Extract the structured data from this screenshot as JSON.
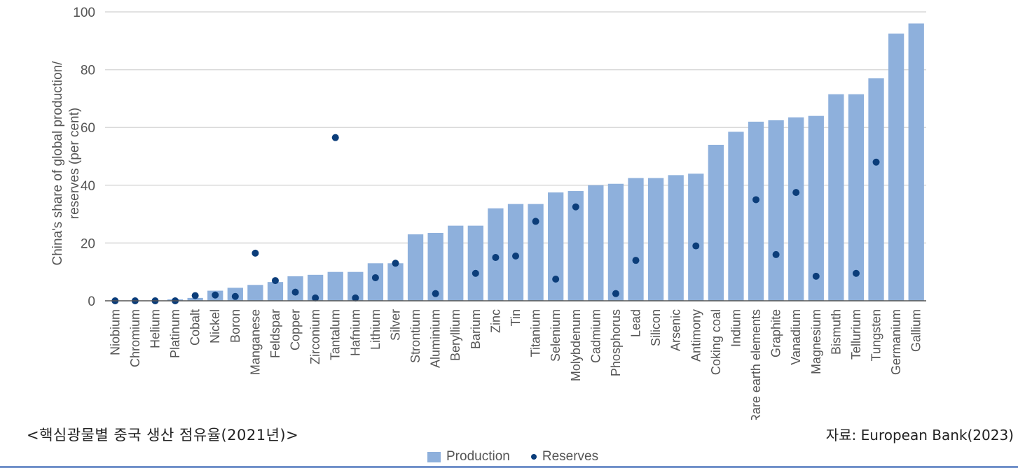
{
  "caption": "<핵심광물별 중국 생산 점유율(2021년)>",
  "source": "자료: European Bank(2023)",
  "colors": {
    "production": "#8eb0dc",
    "reserves": "#0b3d7a",
    "grid": "#d9d9d9",
    "axis": "#555555"
  },
  "chart_data": {
    "type": "bar",
    "ylabel": "China's share of global production/ reserves (per cent)",
    "ylabel_lines": [
      "China's share of global production/",
      "reserves (per cent)"
    ],
    "ylim": [
      0,
      100
    ],
    "yticks": [
      0,
      20,
      40,
      60,
      80,
      100
    ],
    "grid": true,
    "legend_position": "bottom-center",
    "categories": [
      "Niobium",
      "Chromium",
      "Helium",
      "Platinum",
      "Cobalt",
      "Nickel",
      "Boron",
      "Manganese",
      "Feldspar",
      "Copper",
      "Zirconium",
      "Tantalum",
      "Hafnium",
      "Lithium",
      "Silver",
      "Strontium",
      "Aluminium",
      "Beryllium",
      "Barium",
      "Zinc",
      "Tin",
      "Titanium",
      "Selenium",
      "Molybdenum",
      "Cadmium",
      "Phosphorus",
      "Lead",
      "Silicon",
      "Arsenic",
      "Antimony",
      "Coking coal",
      "Indium",
      "Rare earth elements",
      "Graphite",
      "Vanadium",
      "Magnesium",
      "Bismuth",
      "Tellurium",
      "Tungsten",
      "Germanium",
      "Gallium"
    ],
    "series": [
      {
        "name": "Production",
        "type": "bar",
        "values": [
          0,
          0,
          0,
          0.5,
          1,
          3.5,
          4.5,
          5.5,
          6.5,
          8.5,
          9,
          10,
          10,
          13,
          13,
          23,
          23.5,
          26,
          26,
          32,
          33.5,
          33.5,
          37.5,
          38,
          40,
          40.5,
          42.5,
          42.5,
          43.5,
          44,
          54,
          58.5,
          62,
          62.5,
          63.5,
          64,
          71.5,
          71.5,
          77,
          92.5,
          96
        ]
      },
      {
        "name": "Reserves",
        "type": "scatter",
        "values": [
          0,
          0,
          0,
          0,
          1.8,
          2,
          1.5,
          16.5,
          7,
          3,
          1,
          56.5,
          1,
          8,
          13,
          null,
          2.5,
          null,
          9.5,
          15,
          15.5,
          27.5,
          7.5,
          32.5,
          null,
          2.5,
          14,
          null,
          null,
          19,
          null,
          null,
          35,
          16,
          37.5,
          8.5,
          null,
          9.5,
          48,
          null,
          null
        ]
      }
    ]
  }
}
